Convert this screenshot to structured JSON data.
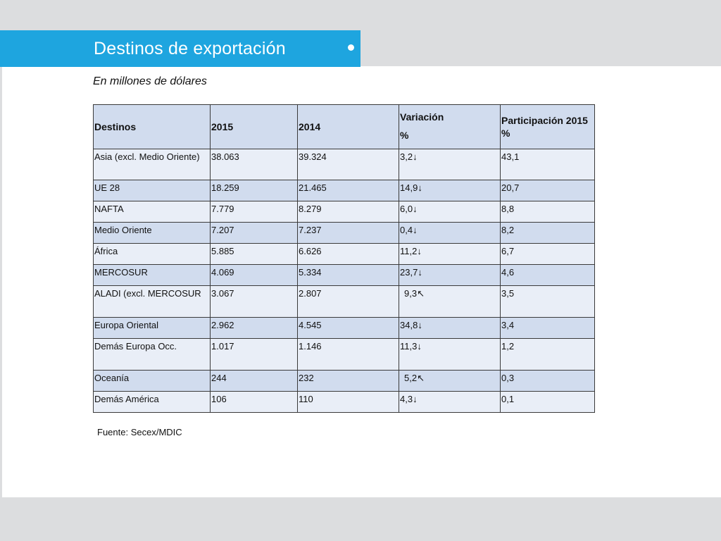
{
  "title": "Destinos de exportación",
  "subtitle": "En millones de dólares",
  "source": "Fuente: Secex/MDIC",
  "colors": {
    "title_bar": "#1ea5df",
    "header_row": "#d1dcee",
    "row_dark": "#d1dcee",
    "row_light": "#e9eef7"
  },
  "table": {
    "headers": {
      "destino": "Destinos",
      "y2015": "2015",
      "y2014": "2014",
      "variacion_line1": "Variación",
      "variacion_line2": "%",
      "participacion": "Participación 2015 %"
    },
    "rows": [
      {
        "destino": "Asia (excl. Medio Oriente)",
        "y2015": "38.063",
        "y2014": "39.324",
        "variacion": "3,2",
        "arrow": "↓",
        "participacion": "43,1"
      },
      {
        "destino": "UE 28",
        "y2015": "18.259",
        "y2014": "21.465",
        "variacion": "14,9",
        "arrow": "↓",
        "participacion": "20,7"
      },
      {
        "destino": "NAFTA",
        "y2015": "7.779",
        "y2014": "8.279",
        "variacion": "6,0",
        "arrow": "↓",
        "participacion": "8,8"
      },
      {
        "destino": "Medio Oriente",
        "y2015": "7.207",
        "y2014": "7.237",
        "variacion": "0,4",
        "arrow": "↓",
        "participacion": "8,2"
      },
      {
        "destino": "África",
        "y2015": "5.885",
        "y2014": "6.626",
        "variacion": "11,2",
        "arrow": "↓",
        "participacion": "6,7"
      },
      {
        "destino": "MERCOSUR",
        "y2015": "4.069",
        "y2014": "5.334",
        "variacion": "23,7",
        "arrow": "↓",
        "participacion": "4,6"
      },
      {
        "destino": "ALADI (excl. MERCOSUR",
        "y2015": "3.067",
        "y2014": "2.807",
        "variacion": "9,3",
        "arrow": "↖",
        "participacion": "3,5"
      },
      {
        "destino": "Europa Oriental",
        "y2015": "2.962",
        "y2014": "4.545",
        "variacion": "34,8",
        "arrow": "↓",
        "participacion": "3,4"
      },
      {
        "destino": "Demás Europa Occ.",
        "y2015": "1.017",
        "y2014": "1.146",
        "variacion": "11,3",
        "arrow": "↓",
        "participacion": "1,2"
      },
      {
        "destino": "Oceanía",
        "y2015": "244",
        "y2014": "232",
        "variacion": "5,2",
        "arrow": "↖",
        "participacion": "0,3"
      },
      {
        "destino": "Demás América",
        "y2015": "106",
        "y2014": "110",
        "variacion": "4,3",
        "arrow": "↓",
        "participacion": "0,1"
      }
    ]
  }
}
